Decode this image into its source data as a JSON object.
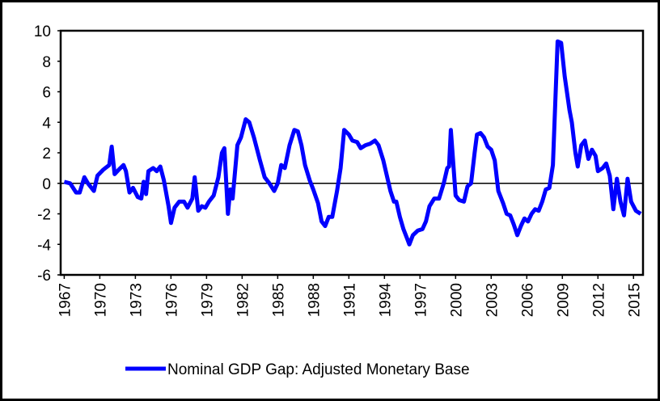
{
  "chart_data": {
    "type": "line",
    "x": [
      1967.0,
      1967.5,
      1968.0,
      1968.3,
      1968.7,
      1969.0,
      1969.5,
      1969.8,
      1970.3,
      1970.8,
      1971.0,
      1971.25,
      1971.6,
      1972.0,
      1972.2,
      1972.5,
      1972.8,
      1973.2,
      1973.5,
      1973.7,
      1973.9,
      1974.1,
      1974.5,
      1974.8,
      1975.1,
      1975.4,
      1975.8,
      1976.0,
      1976.3,
      1976.7,
      1977.1,
      1977.4,
      1977.8,
      1978.0,
      1978.3,
      1978.6,
      1978.9,
      1979.2,
      1979.6,
      1980.0,
      1980.3,
      1980.5,
      1980.8,
      1981.0,
      1981.2,
      1981.6,
      1981.9,
      1982.3,
      1982.6,
      1983.0,
      1983.5,
      1983.9,
      1984.3,
      1984.7,
      1985.0,
      1985.3,
      1985.6,
      1986.0,
      1986.4,
      1986.7,
      1987.0,
      1987.3,
      1987.7,
      1988.0,
      1988.4,
      1988.7,
      1989.0,
      1989.3,
      1989.6,
      1990.0,
      1990.3,
      1990.6,
      1991.0,
      1991.3,
      1991.7,
      1992.0,
      1992.4,
      1992.8,
      1993.2,
      1993.5,
      1993.9,
      1994.2,
      1994.5,
      1994.8,
      1995.0,
      1995.3,
      1995.6,
      1995.9,
      1996.1,
      1996.4,
      1996.8,
      1997.2,
      1997.5,
      1997.8,
      1998.2,
      1998.6,
      1999.0,
      1999.3,
      1999.45,
      1999.6,
      2000.0,
      2000.3,
      2000.7,
      2001.0,
      2001.3,
      2001.6,
      2001.8,
      2002.1,
      2002.4,
      2002.7,
      2003.0,
      2003.3,
      2003.6,
      2004.0,
      2004.3,
      2004.6,
      2004.9,
      2005.2,
      2005.5,
      2005.8,
      2006.1,
      2006.4,
      2006.7,
      2007.0,
      2007.3,
      2007.6,
      2007.9,
      2008.2,
      2008.6,
      2008.9,
      2009.2,
      2009.6,
      2009.8,
      2010.1,
      2010.3,
      2010.6,
      2010.9,
      2011.2,
      2011.5,
      2011.8,
      2012.0,
      2012.4,
      2012.7,
      2013.0,
      2013.3,
      2013.6,
      2013.9,
      2014.2,
      2014.5,
      2014.8,
      2015.2,
      2015.6
    ],
    "series": [
      {
        "name": "Nominal GDP Gap: Adjusted Monetary Base",
        "color": "#0000ff",
        "values": [
          0.1,
          0,
          -0.6,
          -0.6,
          0.4,
          0,
          -0.5,
          0.5,
          0.9,
          1.2,
          2.4,
          0.6,
          0.9,
          1.2,
          0.8,
          -0.6,
          -0.3,
          -0.9,
          -1.0,
          0.1,
          -0.7,
          0.8,
          1.0,
          0.8,
          1.1,
          0.2,
          -1.5,
          -2.6,
          -1.6,
          -1.2,
          -1.2,
          -1.6,
          -1.0,
          0.4,
          -1.8,
          -1.5,
          -1.6,
          -1.2,
          -0.8,
          0.4,
          2.0,
          2.3,
          -2.0,
          -0.4,
          -1.0,
          2.5,
          3.0,
          4.2,
          4.0,
          3.0,
          1.5,
          0.4,
          0,
          -0.5,
          0,
          1.2,
          1.0,
          2.5,
          3.5,
          3.4,
          2.5,
          1.2,
          0.2,
          -0.4,
          -1.3,
          -2.5,
          -2.8,
          -2.2,
          -2.2,
          -0.5,
          1.0,
          3.5,
          3.2,
          2.8,
          2.7,
          2.3,
          2.5,
          2.6,
          2.8,
          2.5,
          1.5,
          0.5,
          -0.5,
          -1.2,
          -1.2,
          -2.2,
          -3.0,
          -3.6,
          -4.0,
          -3.4,
          -3.1,
          -3.0,
          -2.5,
          -1.5,
          -1.0,
          -1.0,
          0,
          1.0,
          1.1,
          3.5,
          -0.8,
          -1.1,
          -1.2,
          -0.2,
          0,
          2.0,
          3.2,
          3.3,
          3.0,
          2.4,
          2.2,
          1.5,
          -0.5,
          -1.3,
          -2.0,
          -2.1,
          -2.7,
          -3.4,
          -2.8,
          -2.3,
          -2.5,
          -2.0,
          -1.7,
          -1.8,
          -1.2,
          -0.4,
          -0.3,
          1.2,
          9.3,
          9.2,
          7.0,
          4.8,
          4.0,
          2.0,
          1.1,
          2.5,
          2.8,
          1.6,
          2.2,
          1.8,
          0.8,
          1.0,
          1.3,
          0.5,
          -1.7,
          0.3,
          -1.2,
          -2.1,
          0.3,
          -1.2,
          -1.8,
          -2.0
        ]
      }
    ],
    "xlim": [
      1966.7,
      2015.8
    ],
    "xticks": [
      1967,
      1970,
      1973,
      1976,
      1979,
      1982,
      1985,
      1988,
      1991,
      1994,
      1997,
      2000,
      2003,
      2006,
      2009,
      2012,
      2015
    ],
    "ylim": [
      -6,
      10
    ],
    "yticks": [
      -6,
      -4,
      -2,
      0,
      2,
      4,
      6,
      8,
      10
    ],
    "legend": "bottom"
  }
}
